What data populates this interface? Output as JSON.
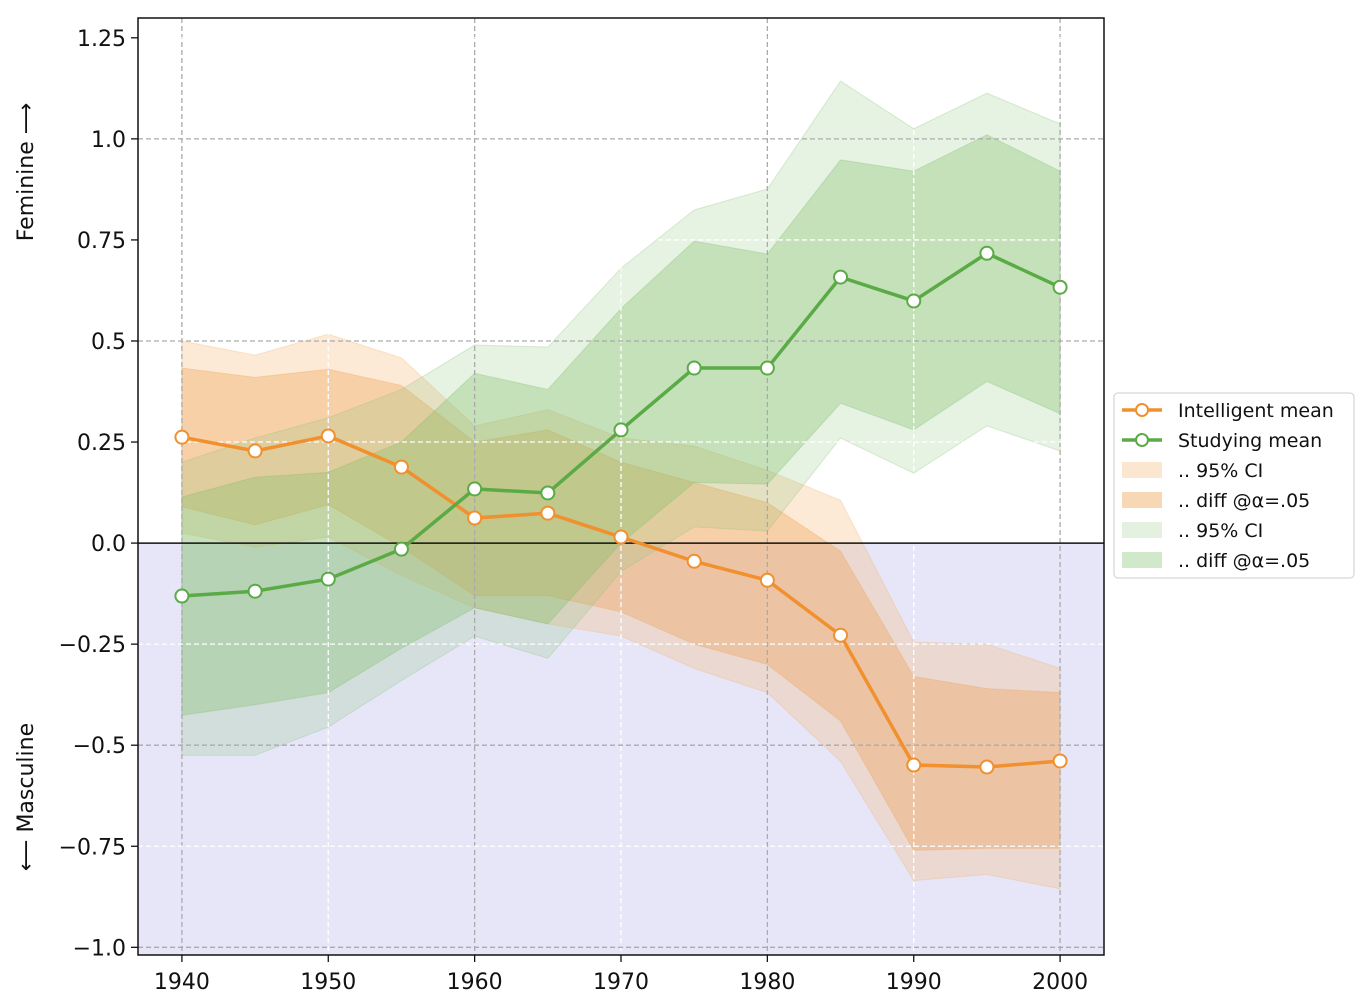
{
  "chart_data": {
    "type": "line",
    "title": "",
    "xlabel": "",
    "ylabel_top": "Feminine ⟶",
    "ylabel_bottom": "⟵ Masculine",
    "xlim": [
      1937,
      2003
    ],
    "ylim": [
      -1.019,
      1.299
    ],
    "xticks": [
      1940,
      1950,
      1960,
      1970,
      1980,
      1990,
      2000
    ],
    "xtick_labels": [
      "1940",
      "1950",
      "1960",
      "1970",
      "1980",
      "1990",
      "2000"
    ],
    "yticks": [
      1.25,
      1.0,
      0.75,
      0.5,
      0.25,
      0.0,
      -0.25,
      -0.5,
      -0.75,
      -1.0
    ],
    "ytick_labels": [
      "1.25",
      "1.0",
      "0.75",
      "0.5",
      "0.25",
      "0.0",
      "−0.25",
      "−0.5",
      "−0.75",
      "−1.0"
    ],
    "grid": true,
    "legend_position": "right",
    "x": [
      1940,
      1945,
      1950,
      1955,
      1960,
      1965,
      1970,
      1975,
      1980,
      1985,
      1990,
      1995,
      2000
    ],
    "series": [
      {
        "name": "Intelligent mean",
        "color": "#f0902e",
        "values": [
          0.262,
          0.228,
          0.265,
          0.188,
          0.062,
          0.074,
          0.015,
          -0.045,
          -0.092,
          -0.228,
          -0.549,
          -0.554,
          -0.539
        ],
        "ci95_upper": [
          0.5,
          0.465,
          0.517,
          0.458,
          0.29,
          0.33,
          0.26,
          0.24,
          0.18,
          0.106,
          -0.245,
          -0.25,
          -0.31
        ],
        "ci95_lower": [
          0.025,
          -0.01,
          0.015,
          -0.08,
          -0.16,
          -0.2,
          -0.23,
          -0.31,
          -0.37,
          -0.54,
          -0.835,
          -0.82,
          -0.855
        ],
        "diff_upper": [
          0.433,
          0.41,
          0.43,
          0.39,
          0.25,
          0.28,
          0.2,
          0.15,
          0.1,
          -0.02,
          -0.33,
          -0.36,
          -0.37
        ],
        "diff_lower": [
          0.09,
          0.045,
          0.095,
          -0.01,
          -0.13,
          -0.13,
          -0.17,
          -0.25,
          -0.3,
          -0.44,
          -0.76,
          -0.755,
          -0.755
        ]
      },
      {
        "name": "Studying mean",
        "color": "#5aaa46",
        "values": [
          -0.131,
          -0.119,
          -0.089,
          -0.015,
          0.134,
          0.124,
          0.28,
          0.433,
          0.433,
          0.658,
          0.599,
          0.717,
          0.633
        ],
        "ci95_upper": [
          0.2,
          0.26,
          0.31,
          0.38,
          0.49,
          0.485,
          0.68,
          0.824,
          0.876,
          1.143,
          1.025,
          1.113,
          1.037
        ],
        "ci95_lower": [
          -0.525,
          -0.525,
          -0.455,
          -0.34,
          -0.23,
          -0.285,
          -0.07,
          0.04,
          0.03,
          0.26,
          0.173,
          0.29,
          0.228
        ],
        "diff_upper": [
          0.114,
          0.163,
          0.175,
          0.25,
          0.42,
          0.38,
          0.58,
          0.747,
          0.715,
          0.948,
          0.92,
          1.01,
          0.92
        ],
        "diff_lower": [
          -0.426,
          -0.4,
          -0.37,
          -0.26,
          -0.16,
          -0.2,
          0.0,
          0.15,
          0.146,
          0.346,
          0.28,
          0.4,
          0.32
        ]
      }
    ],
    "legend": [
      {
        "label": "Intelligent mean",
        "kind": "line",
        "color": "#f0902e"
      },
      {
        "label": "Studying mean",
        "kind": "line",
        "color": "#5aaa46"
      },
      {
        "label": ".. 95% CI",
        "kind": "patch",
        "color": "#fbe6cf"
      },
      {
        "label": ".. diff @α=.05",
        "kind": "patch",
        "color": "#f8d8b4"
      },
      {
        "label": ".. 95% CI",
        "kind": "patch",
        "color": "#e5f1e0"
      },
      {
        "label": ".. diff @α=.05",
        "kind": "patch",
        "color": "#d2e8ca"
      }
    ],
    "masculine_region_color": "#e6e6f8"
  }
}
